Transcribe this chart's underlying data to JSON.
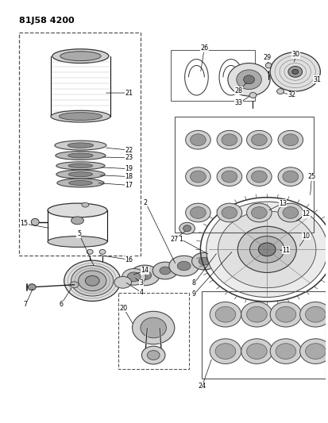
{
  "title": "81J58 4200",
  "bg_color": "#ffffff",
  "line_color": "#111111",
  "fig_width": 4.13,
  "fig_height": 5.33,
  "dpi": 100,
  "labels_info": [
    [
      "21",
      162,
      115,
      130,
      115
    ],
    [
      "22",
      162,
      188,
      130,
      185
    ],
    [
      "23",
      162,
      198,
      126,
      197
    ],
    [
      "19",
      162,
      212,
      124,
      210
    ],
    [
      "18",
      162,
      222,
      122,
      220
    ],
    [
      "17",
      162,
      233,
      120,
      230
    ],
    [
      "15",
      28,
      282,
      62,
      288
    ],
    [
      "16",
      162,
      328,
      122,
      322
    ],
    [
      "2",
      183,
      255,
      222,
      335
    ],
    [
      "1",
      228,
      302,
      265,
      322
    ],
    [
      "3",
      178,
      358,
      168,
      350
    ],
    [
      "4",
      178,
      370,
      156,
      356
    ],
    [
      "5",
      98,
      295,
      118,
      338
    ],
    [
      "6",
      75,
      385,
      90,
      362
    ],
    [
      "7",
      30,
      385,
      40,
      363
    ],
    [
      "14",
      182,
      342,
      165,
      348
    ],
    [
      "8",
      245,
      358,
      275,
      318
    ],
    [
      "9",
      245,
      372,
      295,
      316
    ],
    [
      "27",
      220,
      302,
      236,
      290
    ],
    [
      "10",
      388,
      298,
      378,
      313
    ],
    [
      "11",
      362,
      316,
      352,
      316
    ],
    [
      "12",
      388,
      270,
      373,
      280
    ],
    [
      "13",
      358,
      256,
      338,
      266
    ],
    [
      "26",
      258,
      58,
      253,
      90
    ],
    [
      "25",
      395,
      222,
      393,
      248
    ],
    [
      "20",
      155,
      390,
      168,
      412
    ],
    [
      "24",
      255,
      490,
      268,
      453
    ],
    [
      "28",
      302,
      112,
      314,
      100
    ],
    [
      "29",
      338,
      70,
      340,
      80
    ],
    [
      "30",
      375,
      66,
      372,
      78
    ],
    [
      "31",
      402,
      98,
      396,
      93
    ],
    [
      "32",
      370,
      118,
      356,
      114
    ],
    [
      "33",
      302,
      128,
      318,
      118
    ]
  ]
}
